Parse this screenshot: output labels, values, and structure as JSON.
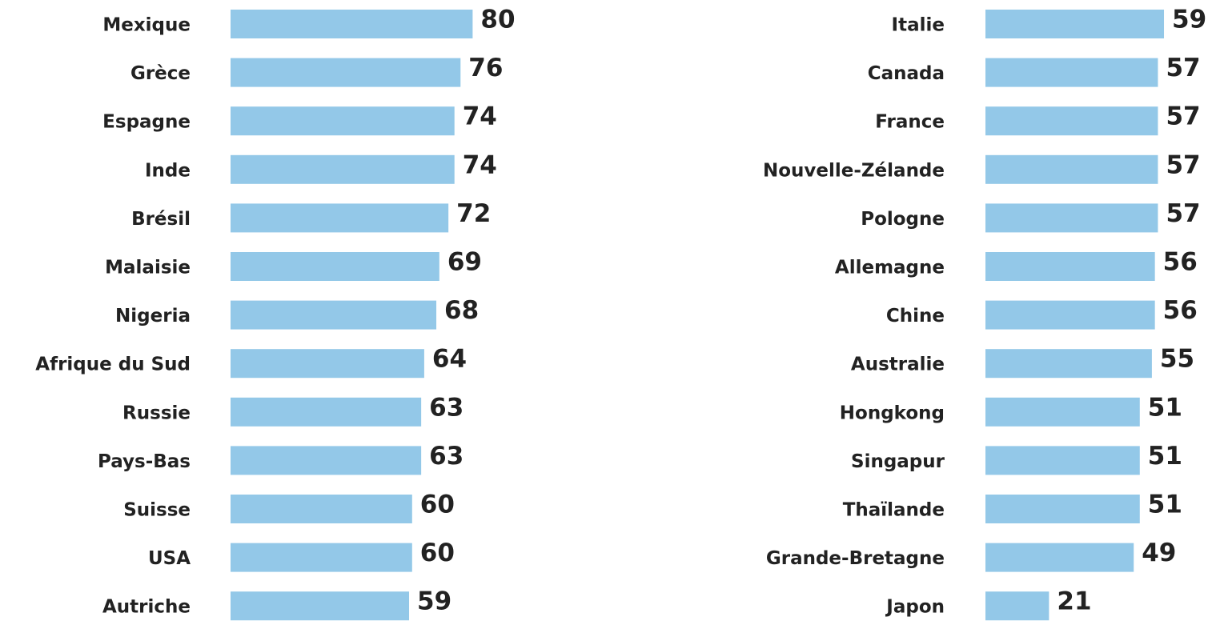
{
  "chart_data": [
    {
      "type": "bar",
      "orientation": "horizontal",
      "color": "#93c8e8",
      "categories": [
        "Mexique",
        "Grèce",
        "Espagne",
        "Inde",
        "Brésil",
        "Malaisie",
        "Nigeria",
        "Afrique du Sud",
        "Russie",
        "Pays-Bas",
        "Suisse",
        "USA",
        "Autriche"
      ],
      "values": [
        80,
        76,
        74,
        74,
        72,
        69,
        68,
        64,
        63,
        63,
        60,
        60,
        59
      ]
    },
    {
      "type": "bar",
      "orientation": "horizontal",
      "color": "#93c8e8",
      "categories": [
        "Italie",
        "Canada",
        "France",
        "Nouvelle-Zélande",
        "Pologne",
        "Allemagne",
        "Chine",
        "Australie",
        "Hongkong",
        "Singapur",
        "Thaïlande",
        "Grande-Bretagne",
        "Japon"
      ],
      "values": [
        59,
        57,
        57,
        57,
        57,
        56,
        56,
        55,
        51,
        51,
        51,
        49,
        21
      ]
    }
  ]
}
